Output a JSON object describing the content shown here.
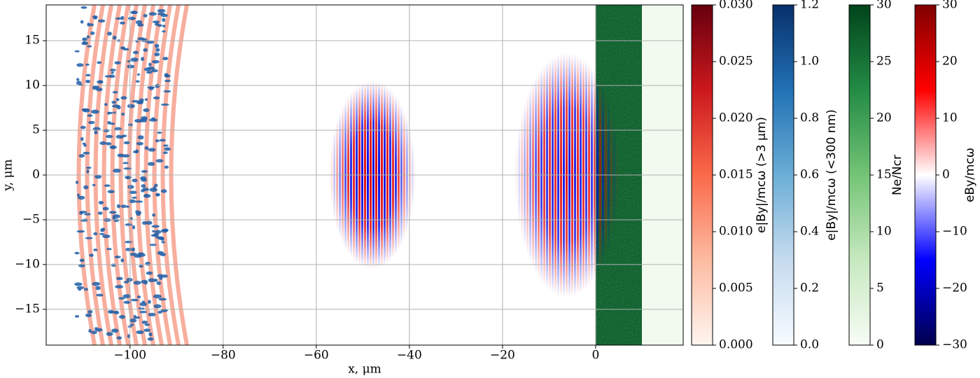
{
  "chart_data": {
    "type": "heatmap",
    "xlabel": "x, μm",
    "ylabel": "y, μm",
    "xlim": [
      -118,
      18.8
    ],
    "ylim": [
      -19,
      19
    ],
    "xticks": [
      {
        "value": -100,
        "label": "−100"
      },
      {
        "value": -80,
        "label": "−80"
      },
      {
        "value": -60,
        "label": "−60"
      },
      {
        "value": -40,
        "label": "−40"
      },
      {
        "value": -20,
        "label": "−20"
      },
      0
    ],
    "yticks": [
      {
        "value": -15,
        "label": "−15"
      },
      {
        "value": -10,
        "label": "−10"
      },
      {
        "value": -5,
        "label": "−5"
      },
      0,
      5,
      10,
      15
    ],
    "grid": true,
    "colorbars": [
      {
        "label": "e|By|/mcω (>3 μm)",
        "lim": [
          0,
          0.03
        ],
        "ticks": [
          {
            "value": 0,
            "label": "0.000"
          },
          {
            "value": 0.005,
            "label": "0.005"
          },
          {
            "value": 0.01,
            "label": "0.010"
          },
          {
            "value": 0.015,
            "label": "0.015"
          },
          {
            "value": 0.02,
            "label": "0.020"
          },
          {
            "value": 0.025,
            "label": "0.025"
          },
          {
            "value": 0.03,
            "label": "0.030"
          }
        ],
        "colors": [
          "#fff5f0",
          "#fcbba1",
          "#fb6a4a",
          "#cb181d",
          "#67000d"
        ]
      },
      {
        "label": "e|By|/mcω (<300 nm)",
        "lim": [
          0,
          1.2
        ],
        "ticks": [
          {
            "value": 0,
            "label": "0.0"
          },
          0.2,
          0.4,
          0.6,
          0.8,
          {
            "value": 1,
            "label": "1.0"
          },
          1.2
        ],
        "colors": [
          "#f7fbff",
          "#c6dbef",
          "#6baed6",
          "#2171b5",
          "#08306b"
        ]
      },
      {
        "label": "Ne/Ncr",
        "lim": [
          0,
          30
        ],
        "ticks": [
          0,
          5,
          10,
          15,
          20,
          25,
          30
        ],
        "colors": [
          "#f7fcf5",
          "#c7e9c0",
          "#74c476",
          "#238b45",
          "#00441b"
        ]
      },
      {
        "label": "eBy/mcω",
        "lim": [
          -30,
          30
        ],
        "ticks": [
          {
            "value": -30,
            "label": "−30"
          },
          {
            "value": -20,
            "label": "−20"
          },
          {
            "value": -10,
            "label": "−10"
          },
          0,
          10,
          20,
          30
        ],
        "colors": [
          "#00004c",
          "#0000ff",
          "#ffffff",
          "#ff0000",
          "#800000"
        ]
      }
    ]
  }
}
